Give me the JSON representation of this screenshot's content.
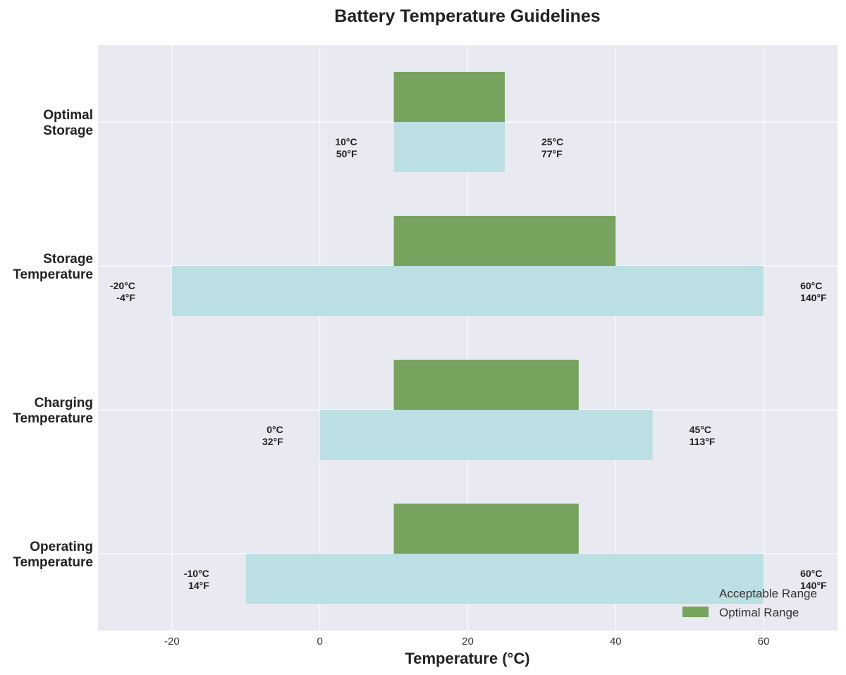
{
  "chart_data": {
    "type": "bar",
    "orientation": "horizontal-range",
    "title": "Battery Temperature Guidelines",
    "xlabel": "Temperature (°C)",
    "ylabel": "",
    "xlim": [
      -30,
      70
    ],
    "xticks": [
      -20,
      0,
      20,
      40,
      60
    ],
    "grid": true,
    "legend_position": "bottom-right",
    "categories": [
      {
        "label_lines": [
          "Optimal",
          "Storage"
        ],
        "acceptable": [
          10,
          25
        ],
        "optimal": [
          10,
          25
        ],
        "min_label": [
          "10°C",
          "50°F"
        ],
        "max_label": [
          "25°C",
          "77°F"
        ]
      },
      {
        "label_lines": [
          "Storage",
          "Temperature"
        ],
        "acceptable": [
          -20,
          60
        ],
        "optimal": [
          10,
          40
        ],
        "min_label": [
          "-20°C",
          "-4°F"
        ],
        "max_label": [
          "60°C",
          "140°F"
        ]
      },
      {
        "label_lines": [
          "Charging",
          "Temperature"
        ],
        "acceptable": [
          0,
          45
        ],
        "optimal": [
          10,
          35
        ],
        "min_label": [
          "0°C",
          "32°F"
        ],
        "max_label": [
          "45°C",
          "113°F"
        ]
      },
      {
        "label_lines": [
          "Operating",
          "Temperature"
        ],
        "acceptable": [
          -10,
          60
        ],
        "optimal": [
          10,
          35
        ],
        "min_label": [
          "-10°C",
          "14°F"
        ],
        "max_label": [
          "60°C",
          "140°F"
        ]
      }
    ],
    "series": [
      {
        "name": "Acceptable Range",
        "color": "#bcdfe3"
      },
      {
        "name": "Optimal Range",
        "color": "#76a35e"
      }
    ],
    "colors": {
      "plot_background": "#e9e9f1",
      "grid": "#ffffff"
    }
  }
}
